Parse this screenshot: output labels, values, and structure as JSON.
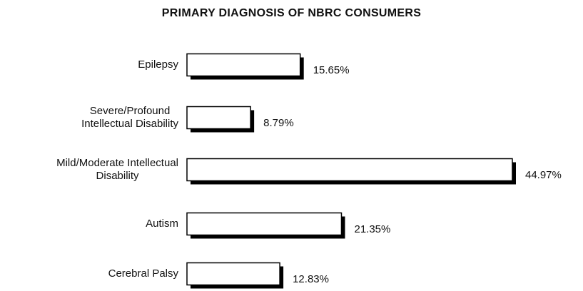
{
  "chart_data": {
    "type": "bar",
    "orientation": "horizontal",
    "title": "PRIMARY DIAGNOSIS OF NBRC CONSUMERS",
    "categories": [
      "Epilepsy",
      "Severe/Profound\nIntellectual Disability",
      "Mild/Moderate Intellectual\nDisability",
      "Autism",
      "Cerebral Palsy"
    ],
    "values": [
      15.65,
      8.79,
      44.97,
      21.35,
      12.83
    ],
    "value_labels": [
      "15.65%",
      "8.79%",
      "44.97%",
      "21.35%",
      "12.83%"
    ],
    "color": "#ffffff"
  }
}
